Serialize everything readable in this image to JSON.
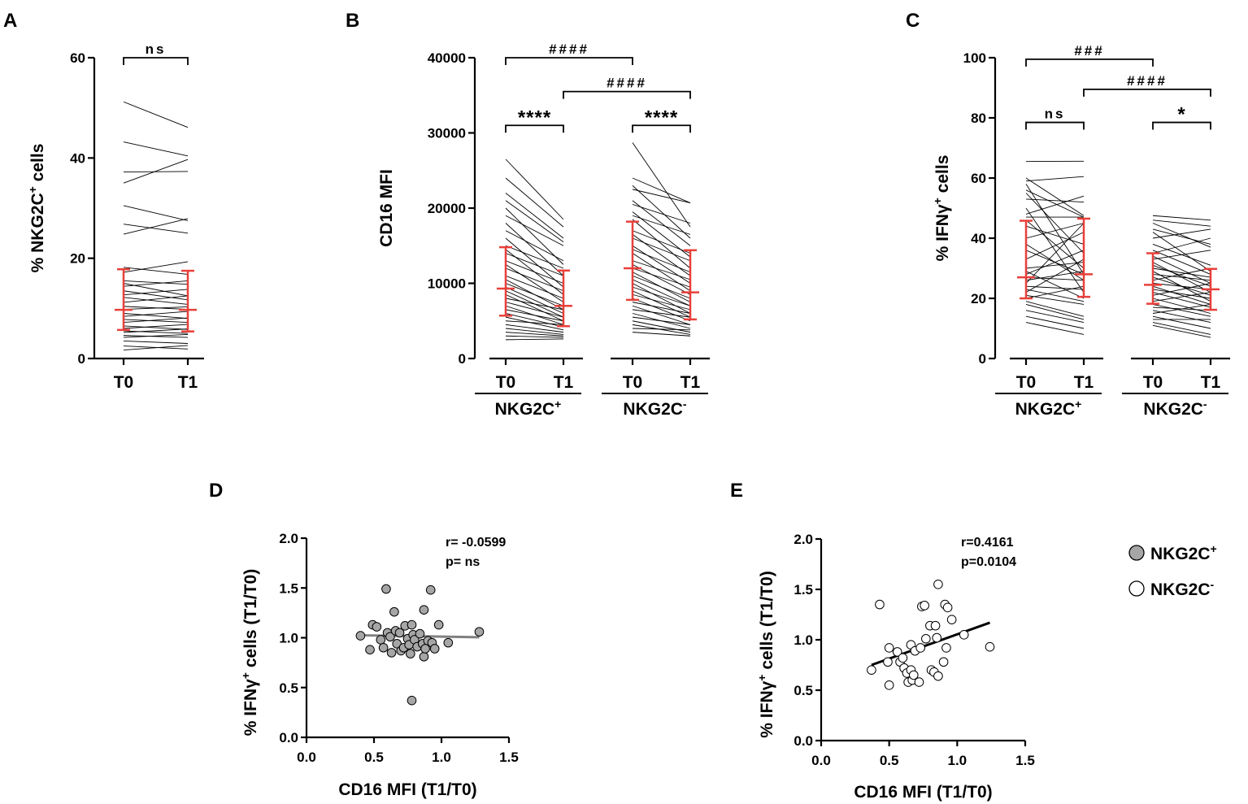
{
  "legend": {
    "items": [
      {
        "label": "NKG2C",
        "sup": "+",
        "fill": "#a6a6a6"
      },
      {
        "label": "NKG2C",
        "sup": "-",
        "fill": "#ffffff"
      }
    ]
  },
  "chart_data": [
    {
      "panel": "A",
      "type": "line",
      "ylabel": {
        "pre": "% NKG2C",
        "sup": "+",
        "post": " cells"
      },
      "ylim": [
        0,
        60
      ],
      "yticks": [
        "0",
        "20",
        "40",
        "60"
      ],
      "categories": [
        "T0",
        "T1"
      ],
      "pairs": [
        [
          51.2,
          46.1
        ],
        [
          43.2,
          40.4
        ],
        [
          37.2,
          37.3
        ],
        [
          35.0,
          39.7
        ],
        [
          30.5,
          27.5
        ],
        [
          26.8,
          25.0
        ],
        [
          24.8,
          27.9
        ],
        [
          18.2,
          16.8
        ],
        [
          17.2,
          19.3
        ],
        [
          15.5,
          14.8
        ],
        [
          15.0,
          12.5
        ],
        [
          14.4,
          15.5
        ],
        [
          13.5,
          11.7
        ],
        [
          12.7,
          13.8
        ],
        [
          12.2,
          10.8
        ],
        [
          11.2,
          12.5
        ],
        [
          10.4,
          9.8
        ],
        [
          9.8,
          10.3
        ],
        [
          9.0,
          8.0
        ],
        [
          8.4,
          9.4
        ],
        [
          7.8,
          7.2
        ],
        [
          7.2,
          8.1
        ],
        [
          6.5,
          5.8
        ],
        [
          6.0,
          6.8
        ],
        [
          5.5,
          5.0
        ],
        [
          5.2,
          5.9
        ],
        [
          4.6,
          4.2
        ],
        [
          4.2,
          4.8
        ],
        [
          3.5,
          3.0
        ],
        [
          2.5,
          1.9
        ],
        [
          1.7,
          2.6
        ]
      ],
      "summary": [
        {
          "median": 9.7,
          "low": 5.7,
          "high": 17.8
        },
        {
          "median": 9.7,
          "low": 5.4,
          "high": 17.5
        }
      ],
      "brackets": [
        {
          "from": 0,
          "to": 1,
          "label": "ns",
          "y": 60
        }
      ]
    },
    {
      "panel": "B",
      "type": "line",
      "ylabel": {
        "pre": "CD16 MFI",
        "sup": "",
        "post": ""
      },
      "ylim": [
        0,
        40000
      ],
      "yticks": [
        "0",
        "10000",
        "20000",
        "30000",
        "40000"
      ],
      "categories": [
        "T0",
        "T1",
        "T0",
        "T1"
      ],
      "groups": [
        {
          "label": "NKG2C",
          "sup": "+",
          "span": [
            0,
            1
          ]
        },
        {
          "label": "NKG2C",
          "sup": "-",
          "span": [
            2,
            3
          ]
        }
      ],
      "pairs_group1": [
        [
          26500,
          18500
        ],
        [
          24000,
          17500
        ],
        [
          22000,
          16000
        ],
        [
          21000,
          15500
        ],
        [
          20000,
          12500
        ],
        [
          19000,
          15000
        ],
        [
          18000,
          11000
        ],
        [
          17000,
          13000
        ],
        [
          16000,
          9500
        ],
        [
          15000,
          12000
        ],
        [
          14500,
          8500
        ],
        [
          14000,
          11000
        ],
        [
          13000,
          10000
        ],
        [
          12500,
          7500
        ],
        [
          12000,
          9000
        ],
        [
          11000,
          8000
        ],
        [
          10500,
          6500
        ],
        [
          10000,
          7000
        ],
        [
          9500,
          6000
        ],
        [
          9000,
          5500
        ],
        [
          8500,
          5000
        ],
        [
          8000,
          6500
        ],
        [
          7500,
          5500
        ],
        [
          7000,
          4500
        ],
        [
          6500,
          5000
        ],
        [
          6000,
          4200
        ],
        [
          5500,
          3800
        ],
        [
          5000,
          4500
        ],
        [
          4500,
          3500
        ],
        [
          4000,
          3200
        ],
        [
          3500,
          3000
        ],
        [
          3000,
          2800
        ],
        [
          2500,
          2600
        ]
      ],
      "summary_group1": [
        {
          "median": 9300,
          "low": 5700,
          "high": 14800
        },
        {
          "median": 7000,
          "low": 4300,
          "high": 11700
        }
      ],
      "pairs_group2": [
        [
          28700,
          17500
        ],
        [
          24000,
          20700
        ],
        [
          23000,
          16000
        ],
        [
          22500,
          20700
        ],
        [
          21000,
          15000
        ],
        [
          20500,
          18000
        ],
        [
          19500,
          13500
        ],
        [
          19000,
          16500
        ],
        [
          18500,
          12000
        ],
        [
          17000,
          14000
        ],
        [
          16500,
          11000
        ],
        [
          16000,
          13000
        ],
        [
          15000,
          10000
        ],
        [
          14500,
          11500
        ],
        [
          14000,
          9000
        ],
        [
          13000,
          10500
        ],
        [
          12500,
          8500
        ],
        [
          12000,
          9500
        ],
        [
          11500,
          7500
        ],
        [
          11000,
          8000
        ],
        [
          10500,
          7000
        ],
        [
          10000,
          6000
        ],
        [
          9500,
          7000
        ],
        [
          9000,
          5500
        ],
        [
          8500,
          6500
        ],
        [
          8000,
          5000
        ],
        [
          7500,
          6000
        ],
        [
          7000,
          4500
        ],
        [
          6500,
          5500
        ],
        [
          6000,
          4000
        ],
        [
          5500,
          4500
        ],
        [
          5000,
          3500
        ],
        [
          4500,
          3200
        ],
        [
          4000,
          3800
        ],
        [
          3500,
          3000
        ]
      ],
      "summary_group2": [
        {
          "median": 12000,
          "low": 7800,
          "high": 18200
        },
        {
          "median": 8800,
          "low": 5200,
          "high": 14400
        }
      ],
      "brackets": [
        {
          "from": 0,
          "to": 1,
          "label": "****",
          "y": 31000,
          "big": true
        },
        {
          "from": 2,
          "to": 3,
          "label": "****",
          "y": 31000,
          "big": true
        },
        {
          "from": 0,
          "to": 2,
          "label": "####",
          "y": 40000,
          "big": false
        },
        {
          "from": 1,
          "to": 3,
          "label": "####",
          "y": 35500,
          "big": false
        }
      ]
    },
    {
      "panel": "C",
      "type": "line",
      "ylabel": {
        "pre": "% IFN",
        "gamma": "γ",
        "sup": "+",
        "post": " cells"
      },
      "ylim": [
        0,
        100
      ],
      "yticks": [
        "0",
        "20",
        "40",
        "60",
        "80",
        "100"
      ],
      "categories": [
        "T0",
        "T1",
        "T0",
        "T1"
      ],
      "groups": [
        {
          "label": "NKG2C",
          "sup": "+",
          "span": [
            0,
            1
          ]
        },
        {
          "label": "NKG2C",
          "sup": "-",
          "span": [
            2,
            3
          ]
        }
      ],
      "pairs_group1": [
        [
          65.5,
          65.6
        ],
        [
          60.0,
          47.5
        ],
        [
          59.0,
          60.5
        ],
        [
          58.0,
          28.0
        ],
        [
          56.0,
          47.0
        ],
        [
          55.0,
          35.0
        ],
        [
          53.0,
          52.0
        ],
        [
          50.0,
          22.0
        ],
        [
          48.0,
          54.0
        ],
        [
          47.0,
          47.0
        ],
        [
          46.0,
          30.0
        ],
        [
          44.0,
          38.0
        ],
        [
          40.0,
          45.0
        ],
        [
          38.0,
          26.0
        ],
        [
          36.0,
          28.0
        ],
        [
          33.0,
          42.0
        ],
        [
          30.0,
          32.0
        ],
        [
          29.0,
          20.0
        ],
        [
          28.0,
          36.0
        ],
        [
          27.0,
          26.0
        ],
        [
          26.0,
          29.0
        ],
        [
          25.0,
          45.0
        ],
        [
          24.0,
          23.0
        ],
        [
          23.0,
          19.0
        ],
        [
          22.0,
          33.0
        ],
        [
          21.0,
          18.0
        ],
        [
          20.0,
          24.0
        ],
        [
          19.0,
          14.0
        ],
        [
          18.0,
          13.0
        ],
        [
          16.0,
          12.0
        ],
        [
          14.0,
          10.0
        ],
        [
          12.0,
          8.0
        ]
      ],
      "summary_group1": [
        {
          "median": 27.0,
          "low": 20.0,
          "high": 45.8
        },
        {
          "median": 28.0,
          "low": 20.5,
          "high": 46.5
        }
      ],
      "pairs_group2": [
        [
          47.5,
          46.0
        ],
        [
          46.0,
          44.0
        ],
        [
          45.0,
          37.0
        ],
        [
          43.0,
          38.0
        ],
        [
          42.0,
          29.0
        ],
        [
          40.0,
          43.0
        ],
        [
          38.0,
          31.0
        ],
        [
          36.0,
          28.0
        ],
        [
          35.0,
          40.0
        ],
        [
          34.0,
          25.0
        ],
        [
          33.0,
          36.0
        ],
        [
          32.0,
          22.0
        ],
        [
          31.0,
          24.0
        ],
        [
          30.0,
          27.0
        ],
        [
          29.0,
          19.0
        ],
        [
          28.0,
          26.0
        ],
        [
          27.0,
          21.0
        ],
        [
          26.0,
          30.0
        ],
        [
          25.0,
          23.0
        ],
        [
          24.0,
          18.0
        ],
        [
          23.0,
          20.0
        ],
        [
          22.0,
          17.0
        ],
        [
          21.0,
          25.0
        ],
        [
          20.0,
          15.0
        ],
        [
          19.0,
          22.0
        ],
        [
          18.0,
          14.0
        ],
        [
          17.0,
          16.0
        ],
        [
          16.0,
          12.0
        ],
        [
          15.0,
          18.0
        ],
        [
          14.0,
          10.0
        ],
        [
          13.0,
          13.0
        ],
        [
          12.0,
          8.0
        ],
        [
          11.0,
          7.0
        ]
      ],
      "summary_group2": [
        {
          "median": 24.5,
          "low": 18.2,
          "high": 35.0
        },
        {
          "median": 23.0,
          "low": 16.2,
          "high": 29.8
        }
      ],
      "brackets": [
        {
          "from": 0,
          "to": 1,
          "label": "ns",
          "y": 78.5,
          "big": false
        },
        {
          "from": 2,
          "to": 3,
          "label": "*",
          "y": 78.5,
          "big": true
        },
        {
          "from": 0,
          "to": 2,
          "label": "###",
          "y": 99.5,
          "big": false
        },
        {
          "from": 1,
          "to": 3,
          "label": "####",
          "y": 89.5,
          "big": false
        }
      ]
    },
    {
      "panel": "D",
      "type": "scatter",
      "xlabel": "CD16 MFI (T1/T0)",
      "ylabel": {
        "pre": "% IFN",
        "gamma": "γ",
        "sup": "+",
        "post": " cells (T1/T0)"
      },
      "xlim": [
        0,
        1.5
      ],
      "ylim": [
        0,
        2.0
      ],
      "xticks": [
        "0.0",
        "0.5",
        "1.0",
        "1.5"
      ],
      "yticks": [
        "0.0",
        "0.5",
        "1.0",
        "1.5",
        "2.0"
      ],
      "stat_r": "r= -0.0599",
      "stat_p": "p= ns",
      "point_fill": "#a6a6a6",
      "points": [
        [
          0.4,
          1.02
        ],
        [
          0.47,
          0.88
        ],
        [
          0.49,
          1.13
        ],
        [
          0.52,
          1.11
        ],
        [
          0.55,
          0.98
        ],
        [
          0.57,
          0.9
        ],
        [
          0.59,
          1.49
        ],
        [
          0.6,
          1.05
        ],
        [
          0.62,
          1.01
        ],
        [
          0.63,
          0.85
        ],
        [
          0.65,
          1.26
        ],
        [
          0.66,
          1.07
        ],
        [
          0.67,
          0.94
        ],
        [
          0.69,
          1.05
        ],
        [
          0.7,
          0.87
        ],
        [
          0.72,
          0.9
        ],
        [
          0.73,
          1.12
        ],
        [
          0.75,
          0.99
        ],
        [
          0.76,
          0.93
        ],
        [
          0.77,
          0.84
        ],
        [
          0.78,
          1.13
        ],
        [
          0.78,
          0.37
        ],
        [
          0.79,
          1.03
        ],
        [
          0.8,
          0.98
        ],
        [
          0.82,
          0.91
        ],
        [
          0.84,
          1.04
        ],
        [
          0.86,
          0.94
        ],
        [
          0.87,
          1.28
        ],
        [
          0.87,
          0.81
        ],
        [
          0.88,
          0.89
        ],
        [
          0.9,
          0.97
        ],
        [
          0.92,
          1.48
        ],
        [
          0.93,
          0.95
        ],
        [
          0.95,
          0.89
        ],
        [
          0.98,
          1.13
        ],
        [
          1.05,
          0.95
        ],
        [
          1.28,
          1.06
        ]
      ],
      "fit": [
        [
          0.4,
          1.025
        ],
        [
          1.28,
          1.005
        ]
      ],
      "fit_color": "#808080"
    },
    {
      "panel": "E",
      "type": "scatter",
      "xlabel": "CD16 MFI (T1/T0)",
      "ylabel": {
        "pre": "% IFN",
        "gamma": "γ",
        "sup": "+",
        "post": " cells (T1/T0)"
      },
      "xlim": [
        0,
        1.5
      ],
      "ylim": [
        0,
        2.0
      ],
      "xticks": [
        "0.0",
        "0.5",
        "1.0",
        "1.5"
      ],
      "yticks": [
        "0.0",
        "0.5",
        "1.0",
        "1.5",
        "2.0"
      ],
      "stat_r": "r=0.4161",
      "stat_p": "p=0.0104",
      "point_fill": "#ffffff",
      "points": [
        [
          0.37,
          0.7
        ],
        [
          0.43,
          1.35
        ],
        [
          0.49,
          0.78
        ],
        [
          0.5,
          0.92
        ],
        [
          0.5,
          0.55
        ],
        [
          0.56,
          0.88
        ],
        [
          0.58,
          0.78
        ],
        [
          0.6,
          0.82
        ],
        [
          0.61,
          0.72
        ],
        [
          0.63,
          0.67
        ],
        [
          0.64,
          0.58
        ],
        [
          0.66,
          0.95
        ],
        [
          0.66,
          0.7
        ],
        [
          0.67,
          0.6
        ],
        [
          0.68,
          0.65
        ],
        [
          0.69,
          0.89
        ],
        [
          0.72,
          0.58
        ],
        [
          0.73,
          0.92
        ],
        [
          0.74,
          1.33
        ],
        [
          0.76,
          1.34
        ],
        [
          0.77,
          1.01
        ],
        [
          0.8,
          1.14
        ],
        [
          0.81,
          0.7
        ],
        [
          0.83,
          0.68
        ],
        [
          0.84,
          1.14
        ],
        [
          0.85,
          1.02
        ],
        [
          0.86,
          0.64
        ],
        [
          0.86,
          1.55
        ],
        [
          0.9,
          0.78
        ],
        [
          0.91,
          1.35
        ],
        [
          0.92,
          0.92
        ],
        [
          0.93,
          1.32
        ],
        [
          0.96,
          1.2
        ],
        [
          1.05,
          1.05
        ],
        [
          1.24,
          0.93
        ]
      ],
      "fit": [
        [
          0.37,
          0.75
        ],
        [
          1.24,
          1.17
        ]
      ],
      "fit_color": "#000000"
    }
  ]
}
